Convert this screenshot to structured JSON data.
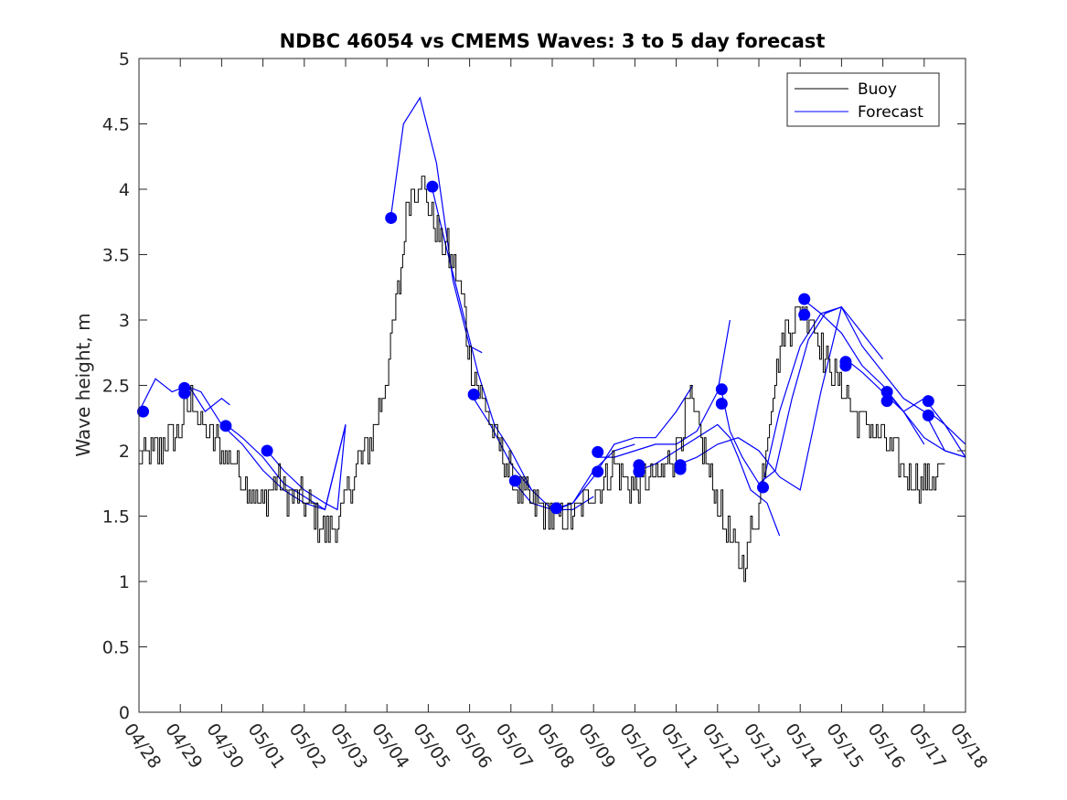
{
  "chart_data": {
    "type": "line",
    "title": "NDBC 46054 vs CMEMS Waves: 3 to 5 day forecast",
    "xlabel": "",
    "ylabel": "Wave height, m",
    "xlim": [
      "04/28",
      "05/18"
    ],
    "ylim": [
      0,
      5
    ],
    "x_ticks": [
      "04/28",
      "04/29",
      "04/30",
      "05/01",
      "05/02",
      "05/03",
      "05/04",
      "05/05",
      "05/06",
      "05/07",
      "05/08",
      "05/09",
      "05/10",
      "05/11",
      "05/12",
      "05/13",
      "05/14",
      "05/15",
      "05/16",
      "05/17",
      "05/18"
    ],
    "y_ticks": [
      "0",
      "0.5",
      "1",
      "1.5",
      "2",
      "2.5",
      "3",
      "3.5",
      "4",
      "4.5",
      "5"
    ],
    "legend_position": "top-right",
    "grid": false,
    "colors": {
      "buoy": "#000000",
      "forecast": "#0000ff",
      "axis": "#262626"
    },
    "buoy": {
      "name": "Buoy",
      "x_day": [
        0,
        0.5,
        1,
        1.3,
        1.5,
        1.8,
        2,
        2.3,
        2.7,
        3,
        3.3,
        3.5,
        3.8,
        4.2,
        4.5,
        4.8,
        5,
        5.3,
        5.5,
        5.8,
        6,
        6.3,
        6.5,
        6.8,
        7,
        7.3,
        7.5,
        7.8,
        8,
        8.3,
        8.6,
        9,
        9.5,
        10,
        10.5,
        11,
        11.5,
        12,
        12.3,
        12.6,
        13,
        13.3,
        13.6,
        14,
        14.3,
        14.6,
        15,
        15.3,
        15.6,
        16,
        16.3,
        16.6,
        17,
        17.3,
        17.6,
        18,
        18.3,
        18.6,
        19,
        19.2,
        19.5
      ],
      "y": [
        1.9,
        2.0,
        2.2,
        2.4,
        2.2,
        2.1,
        2.0,
        1.9,
        1.7,
        1.6,
        1.8,
        1.7,
        1.65,
        1.55,
        1.35,
        1.4,
        1.65,
        1.9,
        2.0,
        2.3,
        2.6,
        3.3,
        3.9,
        4.1,
        3.9,
        3.6,
        3.5,
        3.2,
        2.7,
        2.4,
        2.1,
        1.8,
        1.6,
        1.5,
        1.5,
        1.7,
        1.9,
        1.7,
        1.8,
        1.8,
        2.0,
        2.4,
        2.1,
        1.6,
        1.3,
        1.1,
        1.6,
        2.4,
        2.9,
        3.1,
        3.0,
        2.7,
        2.5,
        2.3,
        2.2,
        2.1,
        2.0,
        1.8,
        1.75,
        1.8,
        1.9
      ]
    },
    "forecast_name": "Forecast",
    "forecast_runs": [
      {
        "x_day": [
          0,
          0.4,
          0.8,
          1.2,
          1.6,
          2.0,
          2.2
        ],
        "y": [
          2.3,
          2.55,
          2.45,
          2.5,
          2.3,
          2.4,
          2.35
        ]
      },
      {
        "x_day": [
          1.1,
          1.5,
          2.0,
          2.5,
          3.0,
          3.5,
          4.0,
          4.5,
          5.0
        ],
        "y": [
          2.5,
          2.45,
          2.2,
          2.05,
          1.85,
          1.7,
          1.6,
          1.55,
          2.2
        ]
      },
      {
        "x_day": [
          2.1,
          2.5,
          3.0,
          3.5,
          4.0,
          4.5,
          5.0
        ],
        "y": [
          2.2,
          2.1,
          1.95,
          1.75,
          1.65,
          1.55,
          2.2
        ]
      },
      {
        "x_day": [
          3.1,
          3.5,
          4.0,
          4.5,
          4.8,
          5.0
        ],
        "y": [
          2.0,
          1.85,
          1.7,
          1.6,
          1.55,
          2.2
        ]
      },
      {
        "x_day": [
          6.1,
          6.4,
          6.8,
          7.2,
          7.6,
          8.0,
          8.3
        ],
        "y": [
          3.8,
          4.5,
          4.7,
          4.2,
          3.3,
          2.8,
          2.75
        ]
      },
      {
        "x_day": [
          7.1,
          7.4,
          7.8,
          8.2,
          8.6,
          9.0,
          9.5
        ],
        "y": [
          4.0,
          3.6,
          3.1,
          2.6,
          2.2,
          2.0,
          1.7
        ]
      },
      {
        "x_day": [
          8.1,
          8.5,
          9.0,
          9.5,
          10.0,
          10.5,
          11.0
        ],
        "y": [
          2.4,
          2.2,
          1.9,
          1.7,
          1.55,
          1.55,
          1.65
        ]
      },
      {
        "x_day": [
          9.1,
          9.5,
          10.0,
          10.5,
          11.0,
          11.5,
          12.0
        ],
        "y": [
          1.75,
          1.6,
          1.55,
          1.6,
          1.85,
          2.0,
          2.05
        ]
      },
      {
        "x_day": [
          10.1,
          10.5,
          11.0,
          11.5,
          12.0,
          12.5,
          13.0,
          13.4
        ],
        "y": [
          1.55,
          1.6,
          1.8,
          2.05,
          2.1,
          2.1,
          2.3,
          2.5
        ]
      },
      {
        "x_day": [
          11.1,
          11.5,
          12.0,
          12.5,
          13.0,
          13.5,
          14.0,
          14.3
        ],
        "y": [
          1.95,
          1.95,
          2.0,
          2.05,
          2.05,
          2.15,
          2.45,
          3.0
        ]
      },
      {
        "x_day": [
          12.1,
          12.5,
          13.0,
          13.5,
          14.0,
          14.3,
          14.5,
          14.8,
          15.2,
          15.5
        ],
        "y": [
          1.85,
          1.9,
          2.0,
          2.1,
          2.2,
          2.1,
          1.95,
          1.7,
          1.6,
          1.35
        ]
      },
      {
        "x_day": [
          13.1,
          13.5,
          14.0,
          14.5,
          15.0,
          15.5,
          16.0,
          16.5,
          17.0
        ],
        "y": [
          1.9,
          1.95,
          2.05,
          2.1,
          2.0,
          1.8,
          1.7,
          2.45,
          3.1
        ]
      },
      {
        "x_day": [
          14.1,
          14.3,
          14.6,
          15.0,
          15.4,
          15.8,
          16.2,
          16.6,
          17.0,
          17.5,
          18.0
        ],
        "y": [
          2.45,
          2.15,
          1.95,
          1.75,
          1.85,
          2.4,
          2.85,
          3.05,
          3.1,
          2.9,
          2.7
        ]
      },
      {
        "x_day": [
          15.1,
          15.5,
          16.0,
          16.5,
          17.0,
          17.5,
          18.0,
          18.5,
          19.0
        ],
        "y": [
          1.75,
          2.3,
          2.8,
          3.05,
          2.9,
          2.65,
          2.5,
          2.3,
          2.05
        ]
      },
      {
        "x_day": [
          16.1,
          16.5,
          17.0,
          17.5,
          18.0,
          18.5,
          19.0,
          19.5,
          20.0
        ],
        "y": [
          3.15,
          3.05,
          3.1,
          2.8,
          2.6,
          2.4,
          2.3,
          2.0,
          1.95
        ]
      },
      {
        "x_day": [
          17.1,
          17.5,
          18.0,
          18.5,
          19.0,
          19.5,
          20.0
        ],
        "y": [
          2.7,
          2.6,
          2.45,
          2.3,
          2.4,
          2.2,
          1.95
        ]
      },
      {
        "x_day": [
          18.1,
          18.5,
          19.0,
          19.5,
          20.0
        ],
        "y": [
          2.45,
          2.3,
          2.1,
          2.0,
          1.95
        ]
      },
      {
        "x_day": [
          19.1,
          19.5,
          20.0
        ],
        "y": [
          2.3,
          2.2,
          2.05
        ]
      }
    ],
    "forecast_markers": {
      "x_day": [
        0.1,
        1.1,
        1.1,
        2.1,
        3.1,
        6.1,
        7.1,
        8.1,
        9.1,
        10.1,
        11.1,
        11.1,
        12.1,
        12.1,
        13.1,
        13.1,
        14.1,
        14.1,
        15.1,
        16.1,
        16.1,
        17.1,
        17.1,
        18.1,
        18.1,
        19.1,
        19.1
      ],
      "y": [
        2.3,
        2.48,
        2.44,
        2.19,
        2.0,
        3.78,
        4.02,
        2.43,
        1.77,
        1.56,
        1.99,
        1.84,
        1.89,
        1.84,
        1.89,
        1.86,
        2.47,
        2.36,
        1.72,
        3.16,
        3.04,
        2.68,
        2.65,
        2.45,
        2.38,
        2.38,
        2.27
      ]
    }
  }
}
